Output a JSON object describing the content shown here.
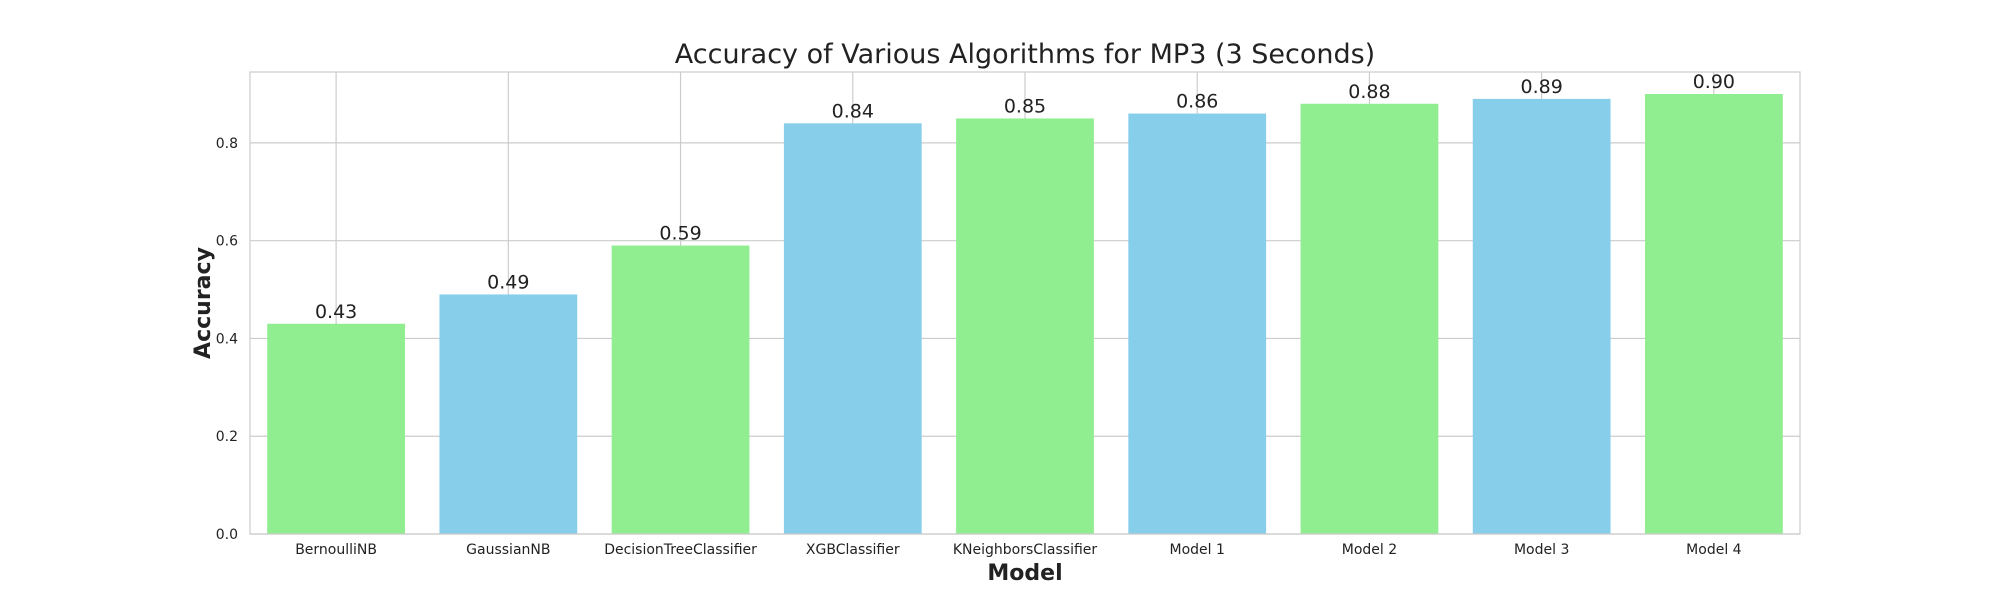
{
  "chart_data": {
    "type": "bar",
    "title": "Accuracy of Various Algorithms for MP3 (3 Seconds)",
    "xlabel": "Model",
    "ylabel": "Accuracy",
    "categories": [
      "BernoulliNB",
      "GaussianNB",
      "DecisionTreeClassifier",
      "XGBClassifier",
      "KNeighborsClassifier",
      "Model 1",
      "Model 2",
      "Model 3",
      "Model 4"
    ],
    "values": [
      0.43,
      0.49,
      0.59,
      0.84,
      0.85,
      0.86,
      0.88,
      0.89,
      0.9
    ],
    "data_labels": [
      "0.43",
      "0.49",
      "0.59",
      "0.84",
      "0.85",
      "0.86",
      "0.88",
      "0.89",
      "0.90"
    ],
    "ylim": [
      0,
      0.945
    ],
    "yticks": [
      0.0,
      0.2,
      0.4,
      0.6,
      0.8
    ],
    "ytick_labels": [
      "0.0",
      "0.2",
      "0.4",
      "0.6",
      "0.8"
    ],
    "grid": true,
    "colors": [
      "#90EE90",
      "#87CEEB",
      "#90EE90",
      "#87CEEB",
      "#90EE90",
      "#87CEEB",
      "#90EE90",
      "#87CEEB",
      "#90EE90"
    ]
  }
}
